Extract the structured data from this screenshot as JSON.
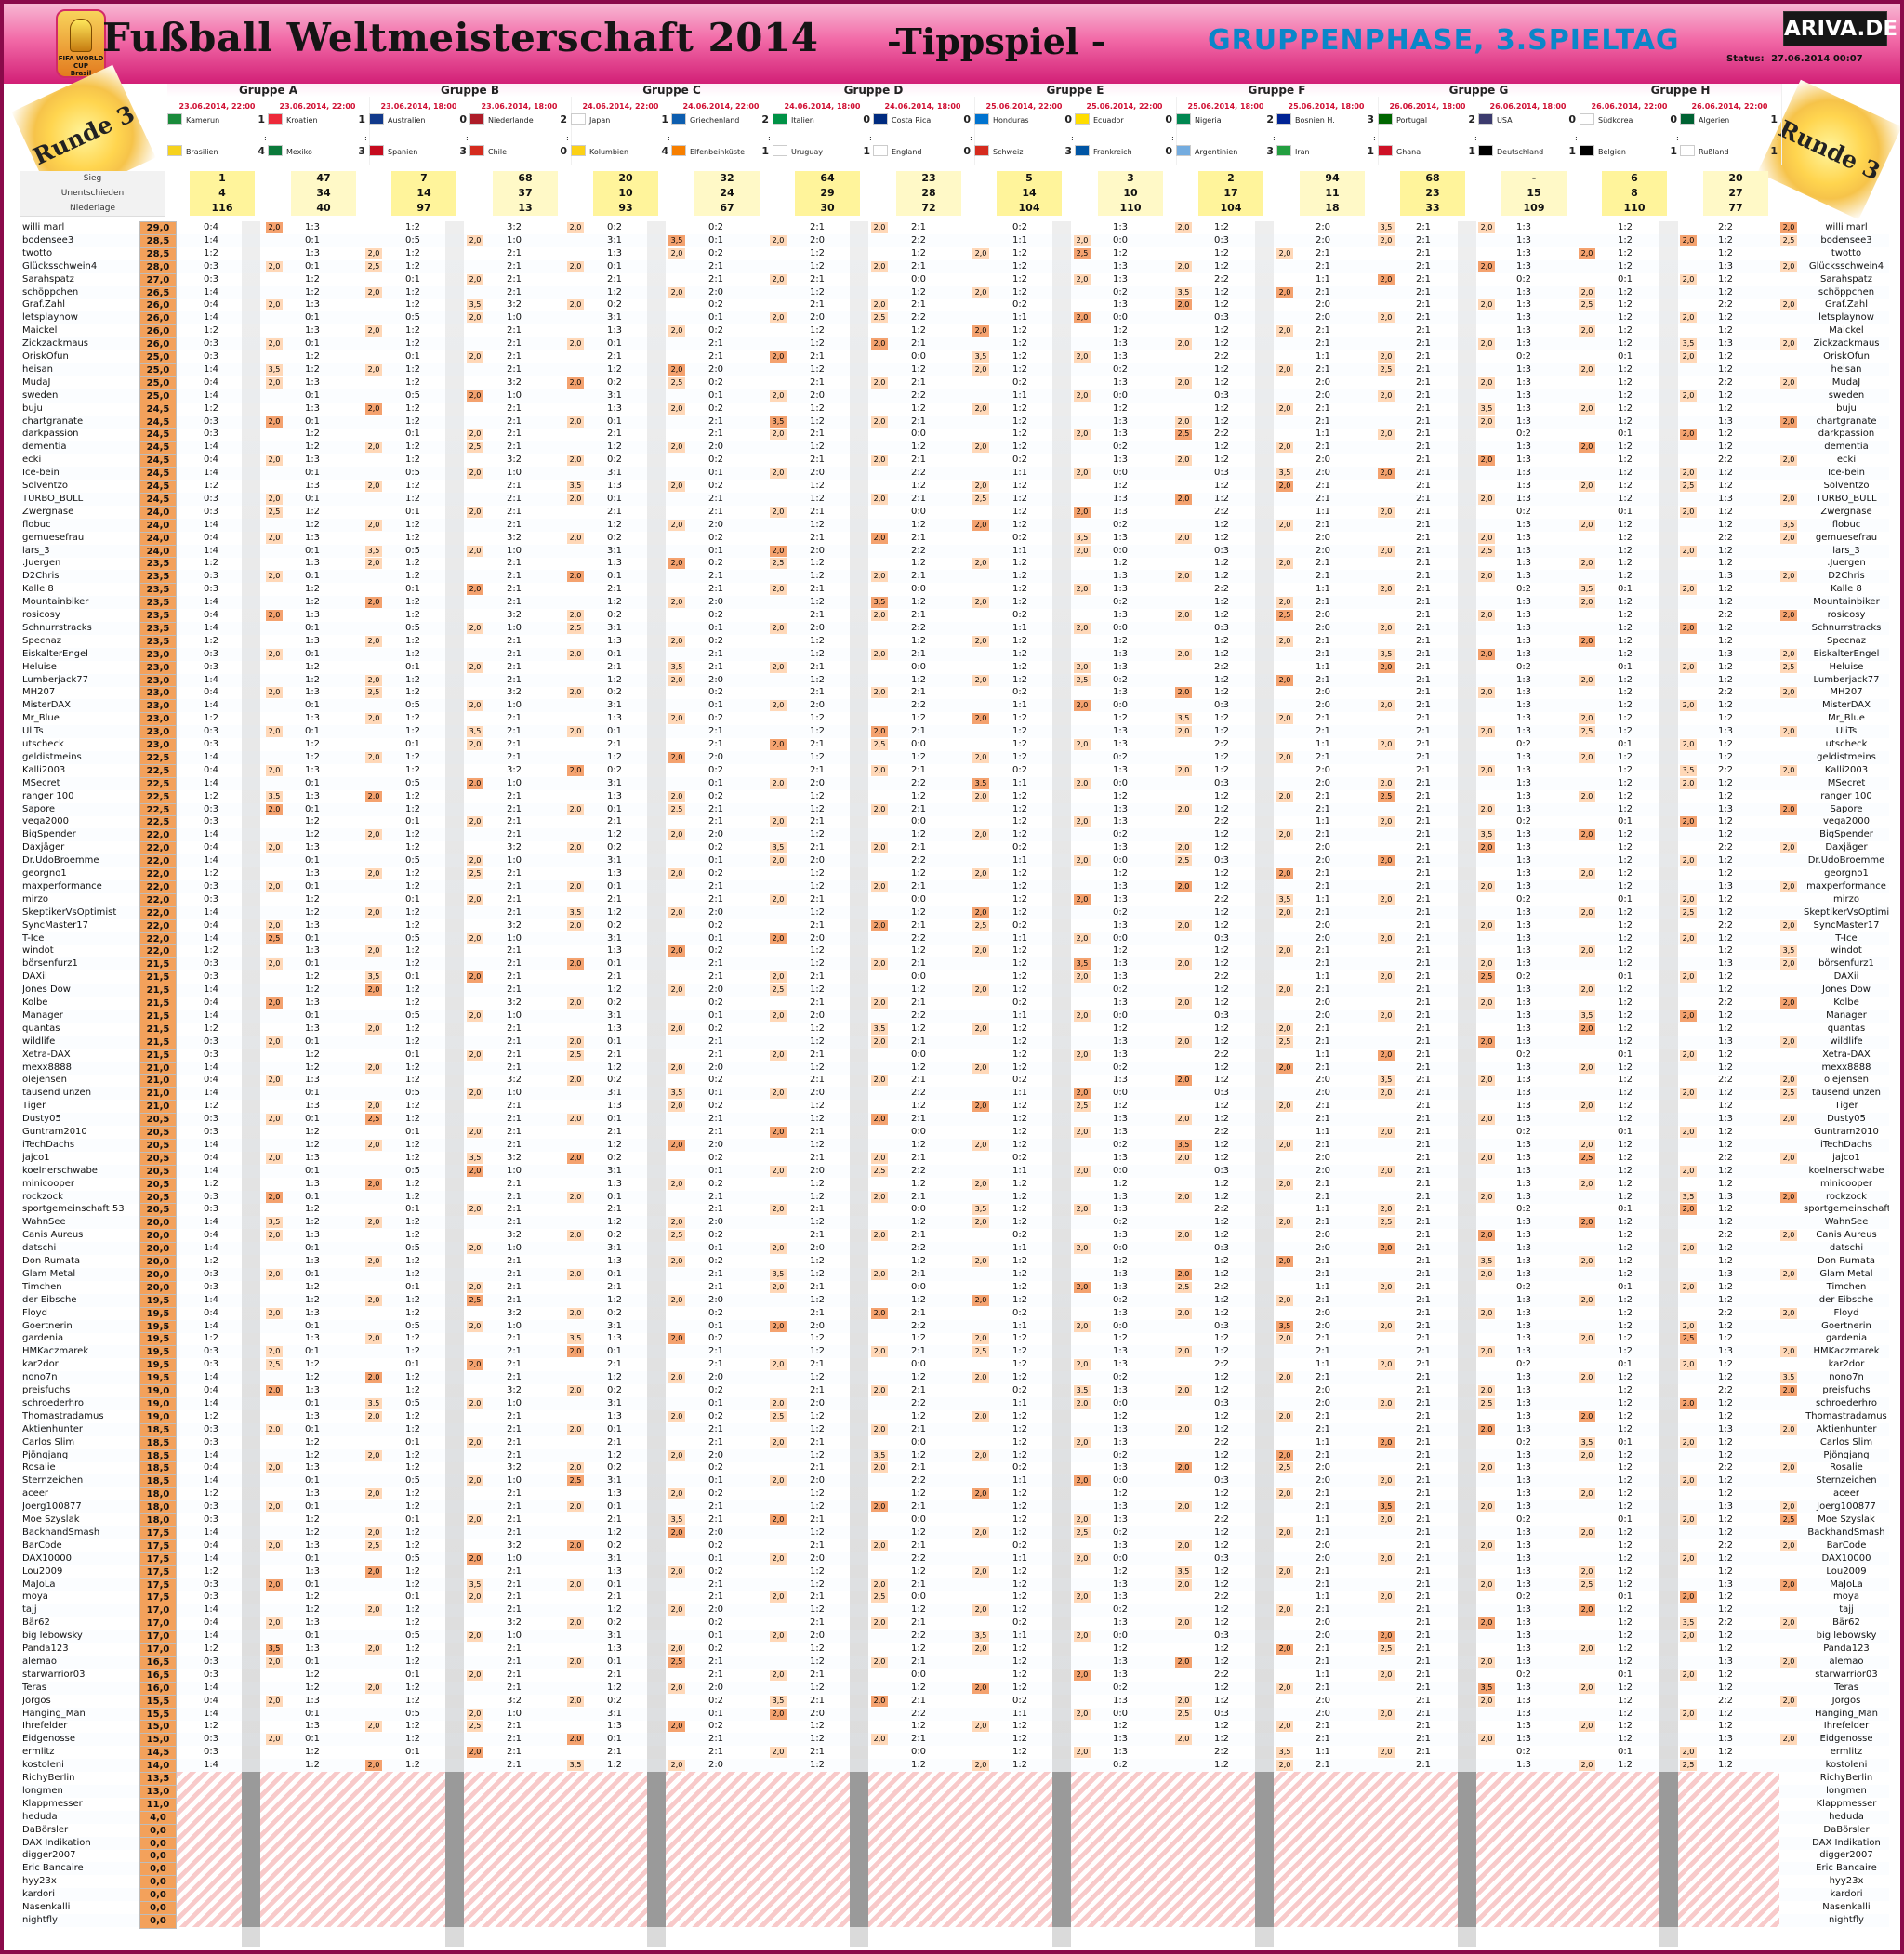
{
  "header": {
    "title": "Fußball Weltmeisterschaft 2014",
    "subtitle": "-Tippspiel -",
    "phase": "GRUPPENPHASE, 3.SPIELTAG",
    "brand": "ARIVA.DE",
    "status_label": "Status:",
    "status_value": "27.06.2014 00:07",
    "round_left": "Runde 3",
    "round_right": "Runde 3",
    "logo_line1": "FIFA WORLD CUP",
    "logo_line2": "Brasil"
  },
  "groups": [
    {
      "name": "Gruppe A",
      "matches": [
        {
          "date": "23.06.2014, 22:00",
          "team1": "Kamerun",
          "team2": "Brasilien",
          "score1": "1",
          "score2": "4",
          "flag1": "#1a8b3b",
          "flag2": "#f6d21d"
        },
        {
          "date": "23.06.2014, 22:00",
          "team1": "Kroatien",
          "team2": "Mexiko",
          "score1": "1",
          "score2": "3",
          "flag1": "#ed2939",
          "flag2": "#0b7a3b"
        }
      ]
    },
    {
      "name": "Gruppe B",
      "matches": [
        {
          "date": "23.06.2014, 18:00",
          "team1": "Australien",
          "team2": "Spanien",
          "score1": "0",
          "score2": "3",
          "flag1": "#123a8c",
          "flag2": "#c60b1e"
        },
        {
          "date": "23.06.2014, 18:00",
          "team1": "Niederlande",
          "team2": "Chile",
          "score1": "2",
          "score2": "0",
          "flag1": "#ae1c28",
          "flag2": "#d52b1e"
        }
      ]
    },
    {
      "name": "Gruppe C",
      "matches": [
        {
          "date": "24.06.2014, 22:00",
          "team1": "Japan",
          "team2": "Kolumbien",
          "score1": "1",
          "score2": "4",
          "flag1": "#ffffff",
          "flag2": "#fcd116"
        },
        {
          "date": "24.06.2014, 22:00",
          "team1": "Griechenland",
          "team2": "Elfenbeinküste",
          "score1": "2",
          "score2": "1",
          "flag1": "#0d5eaf",
          "flag2": "#f77f00"
        }
      ]
    },
    {
      "name": "Gruppe D",
      "matches": [
        {
          "date": "24.06.2014, 18:00",
          "team1": "Italien",
          "team2": "Uruguay",
          "score1": "0",
          "score2": "1",
          "flag1": "#009246",
          "flag2": "#ffffff"
        },
        {
          "date": "24.06.2014, 18:00",
          "team1": "Costa Rica",
          "team2": "England",
          "score1": "0",
          "score2": "0",
          "flag1": "#002b7f",
          "flag2": "#ffffff"
        }
      ]
    },
    {
      "name": "Gruppe E",
      "matches": [
        {
          "date": "25.06.2014, 22:00",
          "team1": "Honduras",
          "team2": "Schweiz",
          "score1": "0",
          "score2": "3",
          "flag1": "#0073cf",
          "flag2": "#d52b1e"
        },
        {
          "date": "25.06.2014, 22:00",
          "team1": "Ecuador",
          "team2": "Frankreich",
          "score1": "0",
          "score2": "0",
          "flag1": "#ffdd00",
          "flag2": "#0055a4"
        }
      ]
    },
    {
      "name": "Gruppe F",
      "matches": [
        {
          "date": "25.06.2014, 18:00",
          "team1": "Nigeria",
          "team2": "Argentinien",
          "score1": "2",
          "score2": "3",
          "flag1": "#008751",
          "flag2": "#74acdf"
        },
        {
          "date": "25.06.2014, 18:00",
          "team1": "Bosnien H.",
          "team2": "Iran",
          "score1": "3",
          "score2": "1",
          "flag1": "#002395",
          "flag2": "#239f40"
        }
      ]
    },
    {
      "name": "Gruppe G",
      "matches": [
        {
          "date": "26.06.2014, 18:00",
          "team1": "Portugal",
          "team2": "Ghana",
          "score1": "2",
          "score2": "1",
          "flag1": "#006600",
          "flag2": "#ce1126"
        },
        {
          "date": "26.06.2014, 18:00",
          "team1": "USA",
          "team2": "Deutschland",
          "score1": "0",
          "score2": "1",
          "flag1": "#3c3b6e",
          "flag2": "#000000"
        }
      ]
    },
    {
      "name": "Gruppe H",
      "matches": [
        {
          "date": "26.06.2014, 22:00",
          "team1": "Südkorea",
          "team2": "Belgien",
          "score1": "0",
          "score2": "1",
          "flag1": "#ffffff",
          "flag2": "#000000"
        },
        {
          "date": "26.06.2014, 22:00",
          "team1": "Algerien",
          "team2": "Rußland",
          "score1": "1",
          "score2": "1",
          "flag1": "#006233",
          "flag2": "#ffffff"
        }
      ]
    }
  ],
  "stats": {
    "labels": [
      "Sieg",
      "Unentschieden",
      "Niederlage"
    ],
    "values": [
      [
        "1",
        "4",
        "116"
      ],
      [
        "47",
        "34",
        "40"
      ],
      [
        "7",
        "14",
        "97"
      ],
      [
        "68",
        "37",
        "13"
      ],
      [
        "20",
        "10",
        "93"
      ],
      [
        "32",
        "24",
        "67"
      ],
      [
        "64",
        "29",
        "30"
      ],
      [
        "23",
        "28",
        "72"
      ],
      [
        "5",
        "14",
        "104"
      ],
      [
        "3",
        "10",
        "110"
      ],
      [
        "2",
        "17",
        "104"
      ],
      [
        "94",
        "11",
        "18"
      ],
      [
        "68",
        "23",
        "33"
      ],
      [
        "-",
        "15",
        "109"
      ],
      [
        "6",
        "8",
        "110"
      ],
      [
        "20",
        "27",
        "77"
      ]
    ]
  },
  "participants": [
    {
      "name": "willi marl",
      "points": "29,0"
    },
    {
      "name": "bodensee3",
      "points": "28,5"
    },
    {
      "name": "twotto",
      "points": "28,5"
    },
    {
      "name": "Glücksschwein4",
      "points": "28,0"
    },
    {
      "name": "Sarahspatz",
      "points": "27,0"
    },
    {
      "name": "schöppchen",
      "points": "26,5"
    },
    {
      "name": "Graf.Zahl",
      "points": "26,0"
    },
    {
      "name": "letsplaynow",
      "points": "26,0"
    },
    {
      "name": "Maickel",
      "points": "26,0"
    },
    {
      "name": "Zickzackmaus",
      "points": "26,0"
    },
    {
      "name": "OriskOfun",
      "points": "25,0"
    },
    {
      "name": "heisan",
      "points": "25,0"
    },
    {
      "name": "MudaJ",
      "points": "25,0"
    },
    {
      "name": "sweden",
      "points": "25,0"
    },
    {
      "name": "buju",
      "points": "24,5"
    },
    {
      "name": "chartgranate",
      "points": "24,5"
    },
    {
      "name": "darkpassion",
      "points": "24,5"
    },
    {
      "name": "dementia",
      "points": "24,5"
    },
    {
      "name": "ecki",
      "points": "24,5"
    },
    {
      "name": "Ice-bein",
      "points": "24,5"
    },
    {
      "name": "Solventzo",
      "points": "24,5"
    },
    {
      "name": "TURBO_BULL",
      "points": "24,5"
    },
    {
      "name": "Zwergnase",
      "points": "24,0"
    },
    {
      "name": "flobuc",
      "points": "24,0"
    },
    {
      "name": "gemuesefrau",
      "points": "24,0"
    },
    {
      "name": "lars_3",
      "points": "24,0"
    },
    {
      "name": ".Juergen",
      "points": "23,5"
    },
    {
      "name": "D2Chris",
      "points": "23,5"
    },
    {
      "name": "Kalle 8",
      "points": "23,5"
    },
    {
      "name": "Mountainbiker",
      "points": "23,5"
    },
    {
      "name": "rosicosy",
      "points": "23,5"
    },
    {
      "name": "Schnurrstracks",
      "points": "23,5"
    },
    {
      "name": "Specnaz",
      "points": "23,5"
    },
    {
      "name": "EiskalterEngel",
      "points": "23,0"
    },
    {
      "name": "Heluise",
      "points": "23,0"
    },
    {
      "name": "Lumberjack77",
      "points": "23,0"
    },
    {
      "name": "MH207",
      "points": "23,0"
    },
    {
      "name": "MisterDAX",
      "points": "23,0"
    },
    {
      "name": "Mr_Blue",
      "points": "23,0"
    },
    {
      "name": "UliTs",
      "points": "23,0"
    },
    {
      "name": "utscheck",
      "points": "23,0"
    },
    {
      "name": "geldistmeins",
      "points": "22,5"
    },
    {
      "name": "Kalli2003",
      "points": "22,5"
    },
    {
      "name": "MSecret",
      "points": "22,5"
    },
    {
      "name": "ranger 100",
      "points": "22,5"
    },
    {
      "name": "Sapore",
      "points": "22,5"
    },
    {
      "name": "vega2000",
      "points": "22,5"
    },
    {
      "name": "BigSpender",
      "points": "22,0"
    },
    {
      "name": "Daxjäger",
      "points": "22,0"
    },
    {
      "name": "Dr.UdoBroemme",
      "points": "22,0"
    },
    {
      "name": "georgno1",
      "points": "22,0"
    },
    {
      "name": "maxperformance",
      "points": "22,0"
    },
    {
      "name": "mirzo",
      "points": "22,0"
    },
    {
      "name": "SkeptikerVsOptimist",
      "points": "22,0"
    },
    {
      "name": "SyncMaster17",
      "points": "22,0"
    },
    {
      "name": "T-Ice",
      "points": "22,0"
    },
    {
      "name": "windot",
      "points": "22,0"
    },
    {
      "name": "börsenfurz1",
      "points": "21,5"
    },
    {
      "name": "DAXii",
      "points": "21,5"
    },
    {
      "name": "Jones Dow",
      "points": "21,5"
    },
    {
      "name": "Kolbe",
      "points": "21,5"
    },
    {
      "name": "Manager",
      "points": "21,5"
    },
    {
      "name": "quantas",
      "points": "21,5"
    },
    {
      "name": "wildlife",
      "points": "21,5"
    },
    {
      "name": "Xetra-DAX",
      "points": "21,5"
    },
    {
      "name": "mexx8888",
      "points": "21,0"
    },
    {
      "name": "olejensen",
      "points": "21,0"
    },
    {
      "name": "tausend unzen",
      "points": "21,0"
    },
    {
      "name": "Tiger",
      "points": "21,0"
    },
    {
      "name": "Dusty05",
      "points": "20,5"
    },
    {
      "name": "Guntram2010",
      "points": "20,5"
    },
    {
      "name": "iTechDachs",
      "points": "20,5"
    },
    {
      "name": "jajco1",
      "points": "20,5"
    },
    {
      "name": "koelnerschwabe",
      "points": "20,5"
    },
    {
      "name": "minicooper",
      "points": "20,5"
    },
    {
      "name": "rockzock",
      "points": "20,5"
    },
    {
      "name": "sportgemeinschaft 53",
      "points": "20,5"
    },
    {
      "name": "WahnSee",
      "points": "20,0"
    },
    {
      "name": "Canis Aureus",
      "points": "20,0"
    },
    {
      "name": "datschi",
      "points": "20,0"
    },
    {
      "name": "Don Rumata",
      "points": "20,0"
    },
    {
      "name": "Glam Metal",
      "points": "20,0"
    },
    {
      "name": "Timchen",
      "points": "20,0"
    },
    {
      "name": "der Eibsche",
      "points": "19,5"
    },
    {
      "name": "Floyd",
      "points": "19,5"
    },
    {
      "name": "Goertnerin",
      "points": "19,5"
    },
    {
      "name": "gardenia",
      "points": "19,5"
    },
    {
      "name": "HMKaczmarek",
      "points": "19,5"
    },
    {
      "name": "kar2dor",
      "points": "19,5"
    },
    {
      "name": "nono7n",
      "points": "19,5"
    },
    {
      "name": "preisfuchs",
      "points": "19,0"
    },
    {
      "name": "schroederhro",
      "points": "19,0"
    },
    {
      "name": "Thomastradamus",
      "points": "19,0"
    },
    {
      "name": "Aktienhunter",
      "points": "18,5"
    },
    {
      "name": "Carlos Slim",
      "points": "18,5"
    },
    {
      "name": "Pjöngjang",
      "points": "18,5"
    },
    {
      "name": "Rosalie",
      "points": "18,5"
    },
    {
      "name": "Sternzeichen",
      "points": "18,5"
    },
    {
      "name": "aceer",
      "points": "18,0"
    },
    {
      "name": "Joerg100877",
      "points": "18,0"
    },
    {
      "name": "Moe Szyslak",
      "points": "18,0"
    },
    {
      "name": "BackhandSmash",
      "points": "17,5"
    },
    {
      "name": "BarCode",
      "points": "17,5"
    },
    {
      "name": "DAX10000",
      "points": "17,5"
    },
    {
      "name": "Lou2009",
      "points": "17,5"
    },
    {
      "name": "MaJoLa",
      "points": "17,5"
    },
    {
      "name": "moya",
      "points": "17,5"
    },
    {
      "name": "tajj",
      "points": "17,0"
    },
    {
      "name": "Bär62",
      "points": "17,0"
    },
    {
      "name": "big lebowsky",
      "points": "17,0"
    },
    {
      "name": "Panda123",
      "points": "17,0"
    },
    {
      "name": "alemao",
      "points": "16,5"
    },
    {
      "name": "starwarrior03",
      "points": "16,5"
    },
    {
      "name": "Teras",
      "points": "16,0"
    },
    {
      "name": "Jorgos",
      "points": "15,5"
    },
    {
      "name": "Hanging_Man",
      "points": "15,5"
    },
    {
      "name": "Ihrefelder",
      "points": "15,0"
    },
    {
      "name": "Eidgenosse",
      "points": "15,0"
    },
    {
      "name": "ermlitz",
      "points": "14,5"
    },
    {
      "name": "kostoleni",
      "points": "14,0"
    },
    {
      "name": "RichyBerlin",
      "points": "13,5"
    },
    {
      "name": "longmen",
      "points": "13,0"
    },
    {
      "name": "Klappmesser",
      "points": "11,0"
    },
    {
      "name": "heduda",
      "points": "4,0"
    },
    {
      "name": "DaBörsler",
      "points": "0,0"
    },
    {
      "name": "DAX Indikation",
      "points": "0,0"
    },
    {
      "name": "digger2007",
      "points": "0,0"
    },
    {
      "name": "Eric Bancaire",
      "points": "0,0"
    },
    {
      "name": "hyy23x",
      "points": "0,0"
    },
    {
      "name": "kardori",
      "points": "0,0"
    },
    {
      "name": "Nasenkalli",
      "points": "0,0"
    },
    {
      "name": "nightfly",
      "points": "0,0"
    }
  ],
  "tip_patterns": [
    [
      "0:4",
      "1:3",
      "1:2",
      "3:2",
      "0:2",
      "0:2",
      "2:1",
      "2:1",
      "0:2",
      "1:3",
      "1:2",
      "2:0",
      "2:1",
      "1:3",
      "1:2",
      "2:2"
    ],
    [
      "1:4",
      "0:1",
      "0:5",
      "1:0",
      "3:1",
      "0:1",
      "2:0",
      "2:2",
      "1:1",
      "0:0",
      "0:3",
      "2:0",
      "2:1",
      "1:3",
      "1:2",
      "1:2"
    ],
    [
      "1:2",
      "1:3",
      "1:2",
      "2:1",
      "1:3",
      "0:2",
      "1:2",
      "1:2",
      "1:2",
      "1:2",
      "1:2",
      "2:1",
      "2:1",
      "1:3",
      "1:2",
      "1:2"
    ],
    [
      "0:3",
      "0:1",
      "1:2",
      "2:1",
      "0:1",
      "2:1",
      "1:2",
      "2:1",
      "1:2",
      "1:3",
      "1:2",
      "2:1",
      "2:1",
      "1:3",
      "1:2",
      "1:3"
    ],
    [
      "0:3",
      "1:2",
      "0:1",
      "2:1",
      "2:1",
      "2:1",
      "2:1",
      "0:0",
      "1:2",
      "1:3",
      "2:2",
      "1:1",
      "2:1",
      "0:2",
      "0:1",
      "1:2"
    ],
    [
      "1:4",
      "1:2",
      "1:2",
      "2:1",
      "1:2",
      "2:0",
      "1:2",
      "1:2",
      "1:2",
      "0:2",
      "1:2",
      "2:1",
      "2:1",
      "1:3",
      "1:2",
      "1:2"
    ]
  ],
  "bonus_values": [
    "2,0",
    "2,5",
    "3,5"
  ]
}
